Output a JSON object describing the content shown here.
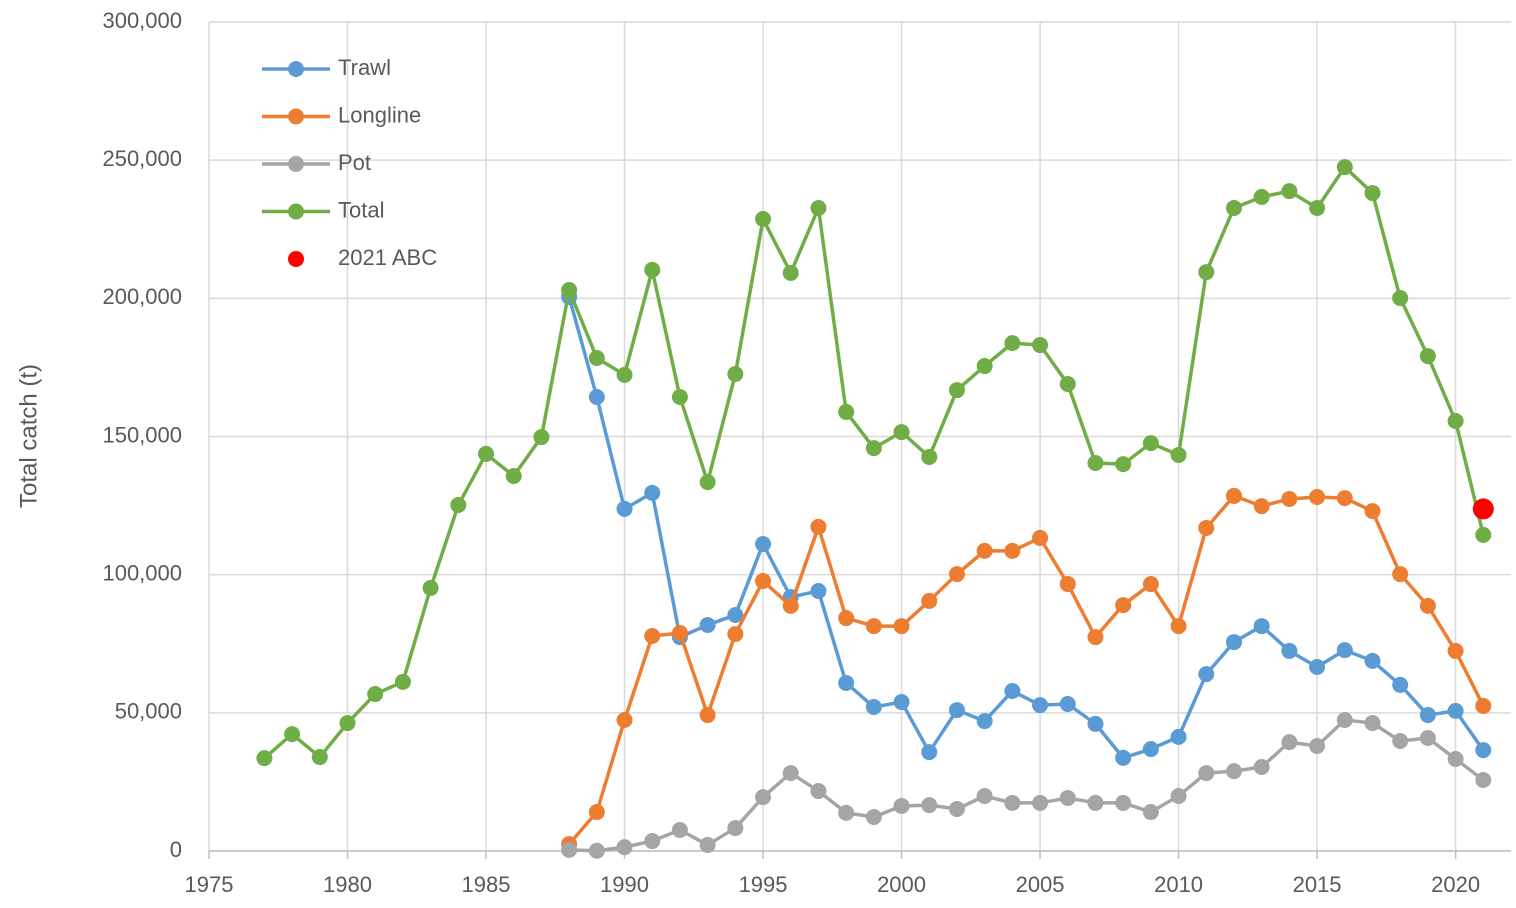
{
  "chart_data": {
    "type": "line",
    "y_label": "Total catch (t)",
    "x": [
      1977,
      1978,
      1979,
      1980,
      1981,
      1982,
      1983,
      1984,
      1985,
      1986,
      1987,
      1988,
      1989,
      1990,
      1991,
      1992,
      1993,
      1994,
      1995,
      1996,
      1997,
      1998,
      1999,
      2000,
      2001,
      2002,
      2003,
      2004,
      2005,
      2006,
      2007,
      2008,
      2009,
      2010,
      2011,
      2012,
      2013,
      2014,
      2015,
      2016,
      2017,
      2018,
      2019,
      2020,
      2021
    ],
    "series": [
      {
        "name": "Trawl",
        "color": "#5b9bd5",
        "mode": "lines+markers",
        "values": [
          null,
          null,
          null,
          null,
          null,
          null,
          null,
          null,
          null,
          null,
          null,
          200500,
          164300,
          123800,
          129600,
          77400,
          81800,
          85400,
          111100,
          91900,
          94100,
          60800,
          52100,
          53900,
          35800,
          51000,
          47000,
          57900,
          52800,
          53200,
          46000,
          33700,
          36900,
          41300,
          64000,
          75600,
          81400,
          72400,
          66600,
          72700,
          68800,
          60100,
          49200,
          50700,
          36500
        ]
      },
      {
        "name": "Longline",
        "color": "#ed7d31",
        "mode": "lines+markers",
        "values": [
          null,
          null,
          null,
          null,
          null,
          null,
          null,
          null,
          null,
          null,
          null,
          2500,
          14100,
          47400,
          77800,
          78900,
          49200,
          78500,
          97700,
          88700,
          117300,
          84300,
          81400,
          81400,
          90500,
          100200,
          108600,
          108600,
          113300,
          96600,
          77400,
          89000,
          96600,
          81400,
          116900,
          128500,
          124800,
          127400,
          128100,
          127700,
          123000,
          100200,
          88700,
          72400,
          52500
        ]
      },
      {
        "name": "Pot",
        "color": "#a5a5a5",
        "mode": "lines+markers",
        "values": [
          null,
          null,
          null,
          null,
          null,
          null,
          null,
          null,
          null,
          null,
          null,
          400,
          100,
          1400,
          3600,
          7600,
          2200,
          8300,
          19500,
          28200,
          21700,
          13800,
          12300,
          16300,
          16600,
          15200,
          19900,
          17400,
          17400,
          19200,
          17400,
          17400,
          14100,
          19900,
          28200,
          28900,
          30400,
          39400,
          38000,
          47400,
          46300,
          39800,
          40900,
          33300,
          25700
        ]
      },
      {
        "name": "Total",
        "color": "#70ad47",
        "mode": "lines+markers",
        "values": [
          33600,
          42300,
          34000,
          46300,
          56800,
          61200,
          95200,
          125200,
          143700,
          135700,
          149800,
          203000,
          178400,
          172300,
          210300,
          164300,
          133500,
          172600,
          228700,
          209200,
          232700,
          158900,
          145800,
          151600,
          142600,
          166800,
          175500,
          183800,
          183100,
          169000,
          140400,
          140000,
          147600,
          143300,
          209500,
          232700,
          236700,
          238800,
          232700,
          247500,
          238100,
          200100,
          179100,
          155600,
          114400
        ]
      },
      {
        "name": "2021 ABC",
        "color": "#ff0000",
        "mode": "markers",
        "values": [
          null,
          null,
          null,
          null,
          null,
          null,
          null,
          null,
          null,
          null,
          null,
          null,
          null,
          null,
          null,
          null,
          null,
          null,
          null,
          null,
          null,
          null,
          null,
          null,
          null,
          null,
          null,
          null,
          null,
          null,
          null,
          null,
          null,
          null,
          null,
          null,
          null,
          null,
          null,
          null,
          null,
          null,
          null,
          null,
          123800
        ]
      }
    ],
    "xlim": [
      1975,
      2022
    ],
    "xticks": [
      1975,
      1980,
      1985,
      1990,
      1995,
      2000,
      2005,
      2010,
      2015,
      2020
    ],
    "ylim": [
      0,
      300000
    ],
    "yticks": [
      0,
      {
        "value": 50000,
        "label": "50,000"
      },
      {
        "value": 100000,
        "label": "100,000"
      },
      {
        "value": 150000,
        "label": "150,000"
      },
      {
        "value": 200000,
        "label": "200,000"
      },
      {
        "value": 250000,
        "label": "250,000"
      },
      {
        "value": 300000,
        "label": "300,000"
      }
    ],
    "grid": true,
    "legend": "upper-left"
  }
}
